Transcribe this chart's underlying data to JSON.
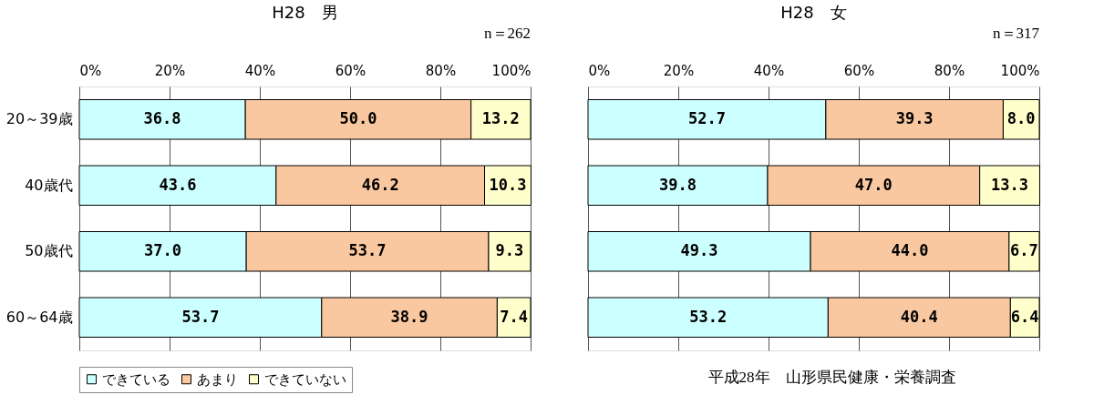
{
  "chart_data": [
    {
      "type": "bar",
      "orientation": "horizontal",
      "stacked": true,
      "title": "H28　男",
      "annotations": [
        "n＝262"
      ],
      "categories": [
        "20～39歳",
        "40歳代",
        "50歳代",
        "60～64歳"
      ],
      "series": [
        {
          "name": "できている",
          "color": "#ccffff",
          "values": [
            36.8,
            43.6,
            37.0,
            53.7
          ],
          "value_labels": [
            "36.8",
            "43.6",
            "37.0",
            "53.7"
          ]
        },
        {
          "name": "あまり",
          "color": "#fac8a0",
          "values": [
            50.0,
            46.2,
            53.7,
            38.9
          ],
          "value_labels": [
            "50.0",
            "46.2",
            "53.7",
            "38.9"
          ]
        },
        {
          "name": "できていない",
          "color": "#ffffcc",
          "values": [
            13.2,
            10.3,
            9.3,
            7.4
          ],
          "value_labels": [
            "13.2",
            "10.3",
            "9.3",
            "7.4"
          ]
        }
      ],
      "xlim": [
        0,
        100
      ],
      "xticks": [
        {
          "value": 0,
          "label": "0%"
        },
        {
          "value": 20,
          "label": "20%"
        },
        {
          "value": 40,
          "label": "40%"
        },
        {
          "value": 60,
          "label": "60%"
        },
        {
          "value": 80,
          "label": "80%"
        },
        {
          "value": 100,
          "label": "100%"
        }
      ],
      "grid": "x",
      "legend": "bottom"
    },
    {
      "type": "bar",
      "orientation": "horizontal",
      "stacked": true,
      "title": "H28　女",
      "annotations": [
        "n＝317",
        "平成28年　山形県民健康・栄養調査"
      ],
      "categories": [
        null,
        null,
        null,
        null
      ],
      "tick_labels": "x",
      "series": [
        {
          "color": "#ccffff",
          "values": [
            52.7,
            39.8,
            49.3,
            53.2
          ],
          "value_labels": [
            "52.7",
            "39.8",
            "49.3",
            "53.2"
          ]
        },
        {
          "color": "#fac8a0",
          "values": [
            39.3,
            47.0,
            44.0,
            40.4
          ],
          "value_labels": [
            "39.3",
            "47.0",
            "44.0",
            "40.4"
          ]
        },
        {
          "color": "#ffffcc",
          "values": [
            8.0,
            13.3,
            6.7,
            6.4
          ],
          "value_labels": [
            "8.0",
            "13.3",
            "6.7",
            "6.4"
          ]
        }
      ],
      "xlim": [
        0,
        100
      ],
      "xticks": [
        {
          "value": 0,
          "label": "0%"
        },
        {
          "value": 20,
          "label": "20%"
        },
        {
          "value": 40,
          "label": "40%"
        },
        {
          "value": 60,
          "label": "60%"
        },
        {
          "value": 80,
          "label": "80%"
        },
        {
          "value": 100,
          "label": "100%"
        }
      ],
      "grid": "x"
    }
  ]
}
